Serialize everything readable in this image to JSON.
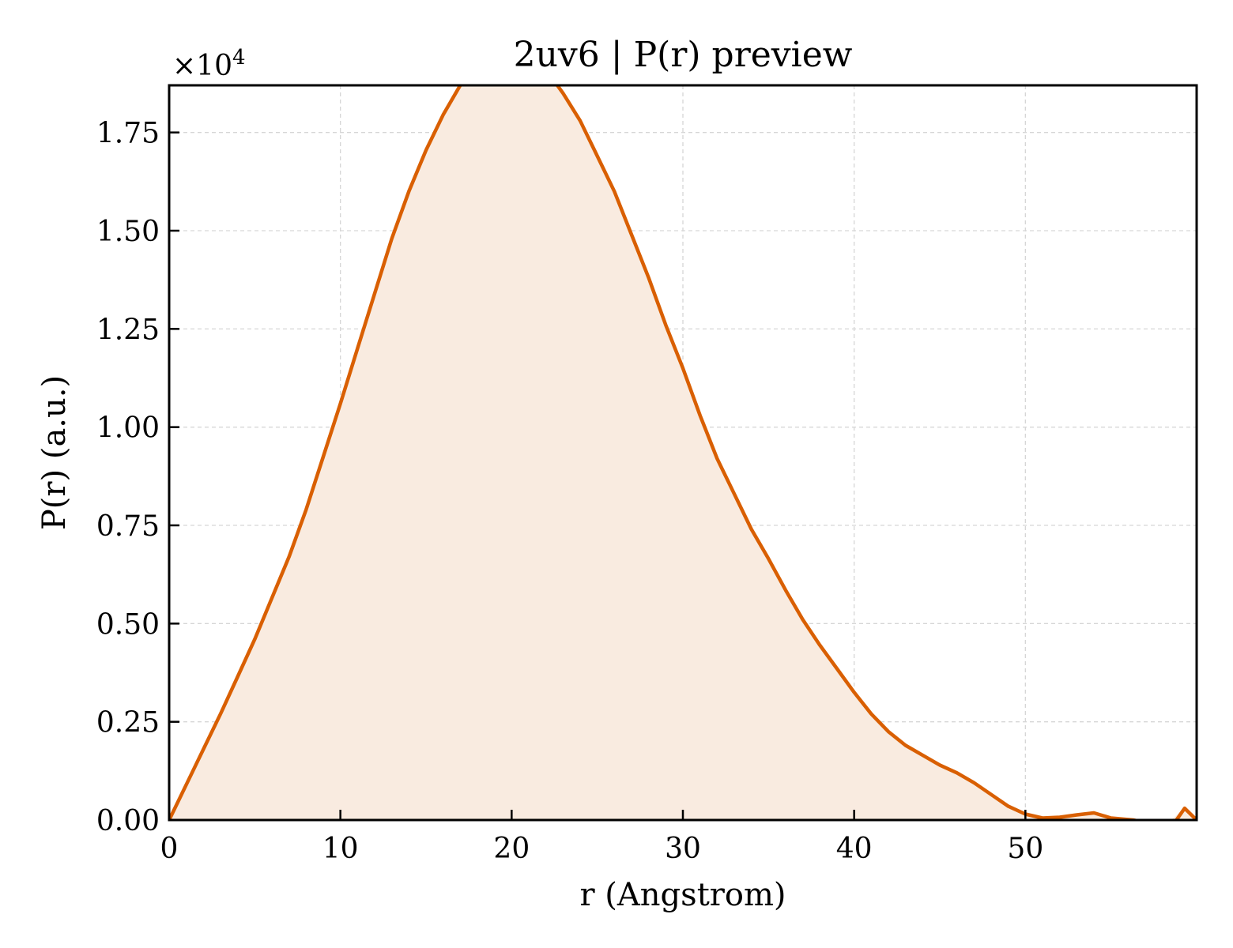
{
  "chart_data": {
    "type": "area",
    "title": "2uv6 | P(r) preview",
    "xlabel": "r (Angstrom)",
    "ylabel": "P(r) (a.u.)",
    "y_offset_label": "×10",
    "y_offset_exponent": "4",
    "xlim": [
      0,
      60
    ],
    "ylim": [
      0,
      1.87
    ],
    "x_ticks": [
      0,
      10,
      20,
      30,
      40,
      50
    ],
    "x_tick_labels": [
      "0",
      "10",
      "20",
      "30",
      "40",
      "50"
    ],
    "y_ticks": [
      0,
      0.25,
      0.5,
      0.75,
      1.0,
      1.25,
      1.5,
      1.75
    ],
    "y_tick_labels": [
      "0.00",
      "0.25",
      "0.50",
      "0.75",
      "1.00",
      "1.25",
      "1.50",
      "1.75"
    ],
    "grid": true,
    "line_color": "#d95f02",
    "fill_color": "#f9ebe0",
    "series": [
      {
        "x": [
          0,
          1,
          2,
          3,
          4,
          5,
          6,
          7,
          8,
          9,
          10,
          11,
          12,
          13,
          14,
          15,
          16,
          17,
          18,
          19,
          19.7,
          20.5,
          21.2,
          22,
          23,
          24,
          25,
          26,
          27,
          28,
          29,
          30,
          31,
          32,
          33,
          34,
          35,
          36,
          37,
          38,
          39,
          40,
          41,
          42,
          43,
          44,
          45,
          46,
          47,
          48,
          49,
          50,
          51,
          52,
          53,
          54,
          55,
          56.3,
          58.5,
          59.3,
          60
        ],
        "y": [
          0,
          0.09,
          0.18,
          0.27,
          0.365,
          0.46,
          0.565,
          0.67,
          0.79,
          0.925,
          1.06,
          1.2,
          1.34,
          1.48,
          1.6,
          1.705,
          1.795,
          1.87,
          1.93,
          1.965,
          1.97,
          1.96,
          1.94,
          1.91,
          1.85,
          1.78,
          1.69,
          1.6,
          1.49,
          1.38,
          1.26,
          1.15,
          1.03,
          0.92,
          0.83,
          0.74,
          0.665,
          0.585,
          0.51,
          0.445,
          0.385,
          0.325,
          0.27,
          0.225,
          0.19,
          0.165,
          0.14,
          0.12,
          0.095,
          0.065,
          0.035,
          0.015,
          0.005,
          0.007,
          0.013,
          0.018,
          0.005,
          0.0,
          -0.02,
          0.03,
          0.0
        ]
      }
    ]
  }
}
